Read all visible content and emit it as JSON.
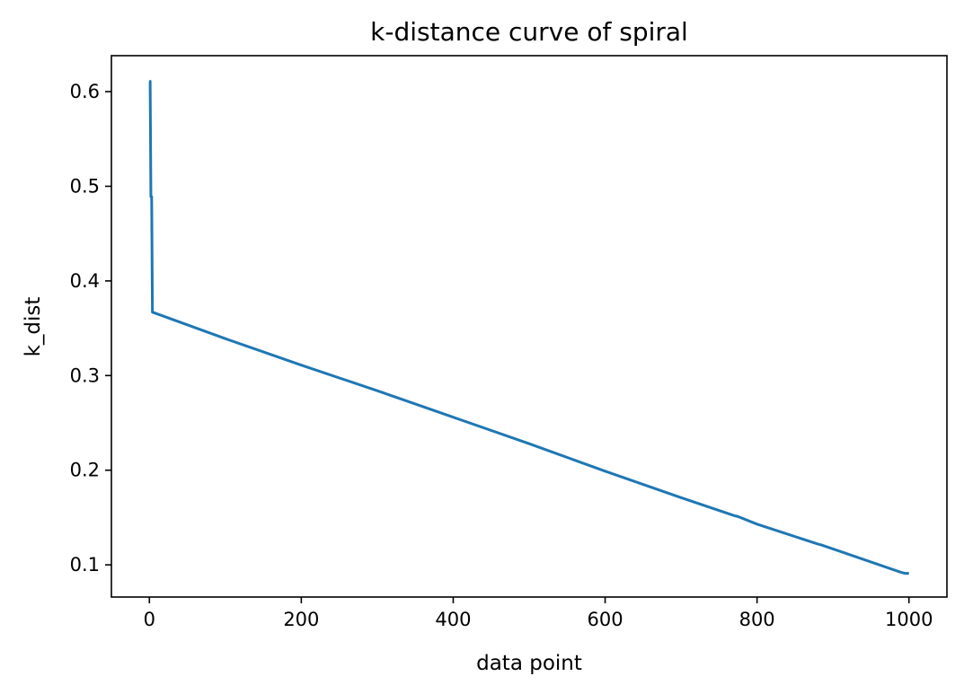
{
  "chart_data": {
    "type": "line",
    "title": "k-distance curve of spiral",
    "xlabel": "data point",
    "ylabel": "k_dist",
    "xlim": [
      -50,
      1050
    ],
    "ylim": [
      0.066,
      0.638
    ],
    "xticks": [
      0,
      200,
      400,
      600,
      800,
      1000
    ],
    "yticks": [
      0.1,
      0.2,
      0.3,
      0.4,
      0.5,
      0.6
    ],
    "xtick_labels": [
      "0",
      "200",
      "400",
      "600",
      "800",
      "1000"
    ],
    "ytick_labels": [
      "0.1",
      "0.2",
      "0.3",
      "0.4",
      "0.5",
      "0.6"
    ],
    "grid": false,
    "series": [
      {
        "color": "#1f77b4",
        "x": [
          0,
          1,
          2,
          3,
          4,
          100,
          200,
          300,
          400,
          500,
          600,
          700,
          770,
          775,
          800,
          880,
          885,
          990,
          995,
          1000
        ],
        "y": [
          0.611,
          0.611,
          0.489,
          0.489,
          0.367,
          0.339,
          0.311,
          0.284,
          0.256,
          0.228,
          0.199,
          0.171,
          0.152,
          0.151,
          0.143,
          0.122,
          0.121,
          0.092,
          0.091,
          0.091
        ]
      }
    ]
  }
}
